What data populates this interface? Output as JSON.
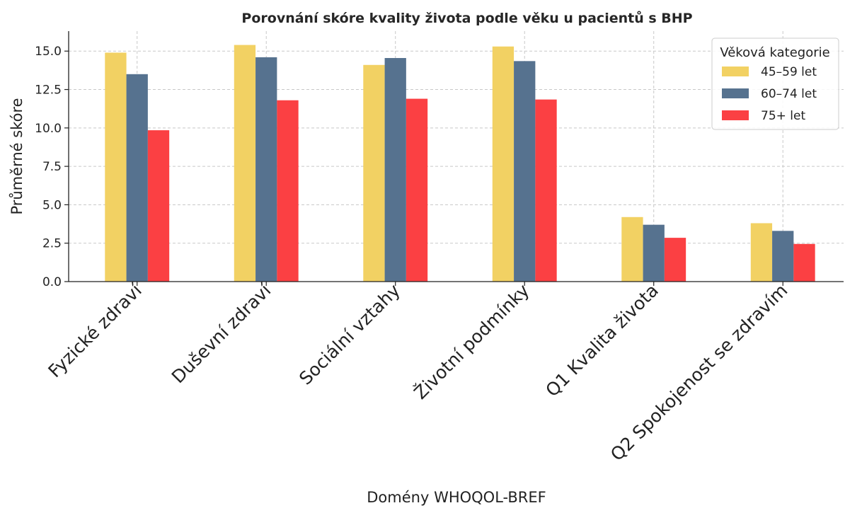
{
  "chart_data": {
    "type": "bar",
    "title": "Porovnání skóre kvality života podle věku u pacientů s BHP",
    "xlabel": "Domény WHOQOL-BREF",
    "ylabel": "Průměrné skóre",
    "categories": [
      "Fyzické zdraví",
      "Duševní zdraví",
      "Sociální vztahy",
      "Životní podmínky",
      "Q1 Kvalita života",
      "Q2 Spokojenost se zdravím"
    ],
    "series": [
      {
        "name": "45–59 let",
        "color": "#f2d163",
        "values": [
          14.9,
          15.4,
          14.1,
          15.3,
          4.2,
          3.8
        ]
      },
      {
        "name": "60–74 let",
        "color": "#56728f",
        "values": [
          13.5,
          14.6,
          14.55,
          14.35,
          3.7,
          3.3
        ]
      },
      {
        "name": "75+ let",
        "color": "#fb4043",
        "values": [
          9.85,
          11.8,
          11.9,
          11.85,
          2.85,
          2.45
        ]
      }
    ],
    "ylim": [
      0,
      16.3
    ],
    "yticks": [
      "0.0",
      "2.5",
      "5.0",
      "7.5",
      "10.0",
      "12.5",
      "15.0"
    ],
    "grid": true,
    "legend": {
      "title": "Věková kategorie",
      "position": "top-right"
    }
  }
}
